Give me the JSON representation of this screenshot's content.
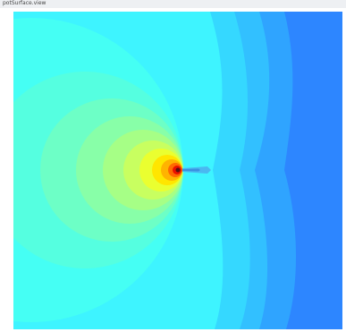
{
  "header": {
    "title": "potSurface.view"
  }
}
